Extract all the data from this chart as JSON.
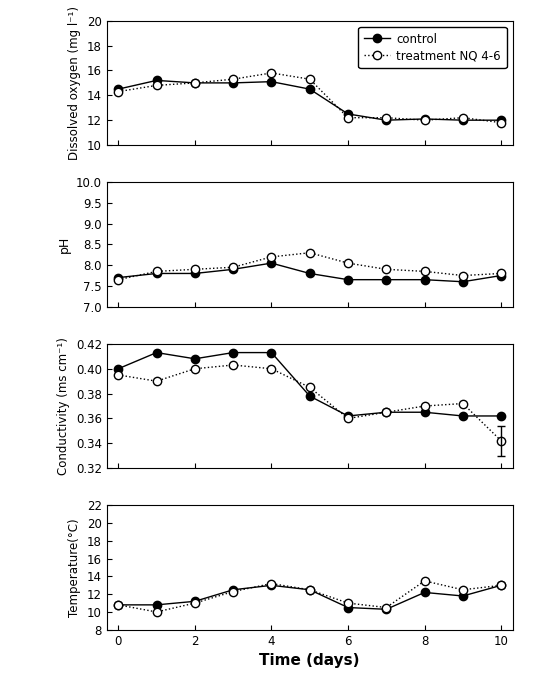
{
  "days": [
    0,
    1,
    2,
    3,
    4,
    5,
    6,
    7,
    8,
    9,
    10
  ],
  "do_control": [
    14.5,
    15.2,
    15.0,
    15.0,
    15.1,
    14.5,
    12.5,
    12.0,
    12.1,
    12.0,
    12.0
  ],
  "do_treatment": [
    14.3,
    14.8,
    15.0,
    15.3,
    15.8,
    15.3,
    12.2,
    12.2,
    12.0,
    12.2,
    11.8
  ],
  "ph_control": [
    7.7,
    7.8,
    7.8,
    7.9,
    8.05,
    7.8,
    7.65,
    7.65,
    7.65,
    7.6,
    7.75
  ],
  "ph_treatment": [
    7.65,
    7.85,
    7.9,
    7.95,
    8.2,
    8.3,
    8.05,
    7.9,
    7.85,
    7.75,
    7.8
  ],
  "cond_control": [
    0.4,
    0.413,
    0.408,
    0.413,
    0.413,
    0.378,
    0.362,
    0.365,
    0.365,
    0.362,
    0.362
  ],
  "cond_treatment": [
    0.395,
    0.39,
    0.4,
    0.403,
    0.4,
    0.385,
    0.36,
    0.365,
    0.37,
    0.372,
    0.342
  ],
  "cond_treatment_err": [
    0,
    0,
    0,
    0,
    0,
    0,
    0,
    0,
    0,
    0,
    0.012
  ],
  "temp_control": [
    10.8,
    10.8,
    11.2,
    12.5,
    13.0,
    12.5,
    10.5,
    10.3,
    12.2,
    11.8,
    13.0
  ],
  "temp_treatment": [
    10.8,
    10.0,
    11.0,
    12.3,
    13.2,
    12.5,
    11.0,
    10.5,
    13.5,
    12.5,
    13.0
  ],
  "do_ylim": [
    10,
    20
  ],
  "do_yticks": [
    10,
    12,
    14,
    16,
    18,
    20
  ],
  "ph_ylim": [
    7.0,
    10.0
  ],
  "ph_yticks": [
    7.0,
    7.5,
    8.0,
    8.5,
    9.0,
    9.5,
    10.0
  ],
  "cond_ylim": [
    0.32,
    0.42
  ],
  "cond_yticks": [
    0.32,
    0.34,
    0.36,
    0.38,
    0.4,
    0.42
  ],
  "temp_ylim": [
    8,
    22
  ],
  "temp_yticks": [
    8,
    10,
    12,
    14,
    16,
    18,
    20,
    22
  ],
  "xticks": [
    0,
    2,
    4,
    6,
    8,
    10
  ],
  "xlabel": "Time (days)",
  "ylabel_do": "Dissolved oxygen (mg l⁻¹)",
  "ylabel_ph": "pH",
  "ylabel_cond": "Conductivity (ms cm⁻¹)",
  "ylabel_temp": "Temperature(°C)",
  "legend_control": "control",
  "legend_treatment": "treatment NQ 4-6",
  "bg_color": "#ffffff",
  "line_color": "#000000"
}
